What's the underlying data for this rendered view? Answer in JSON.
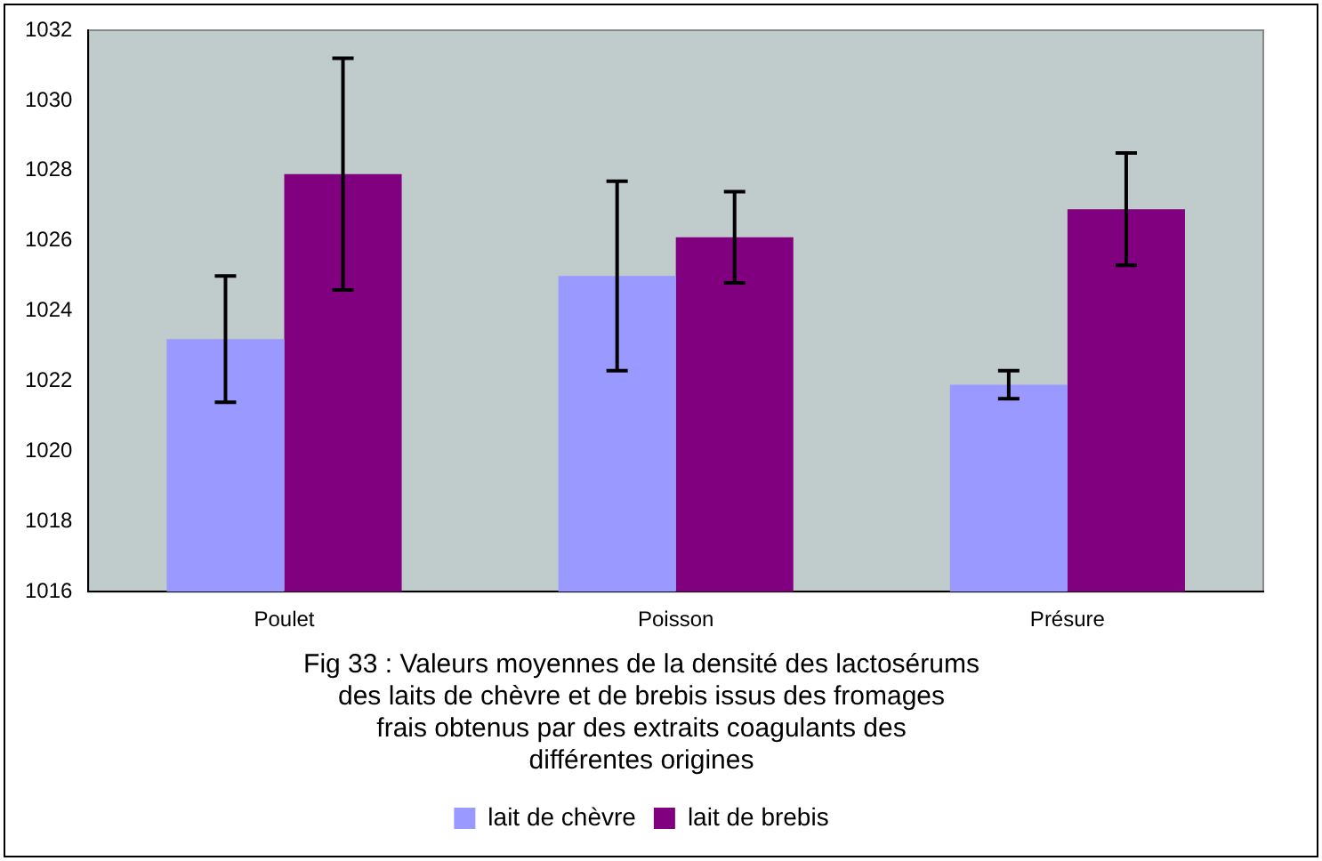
{
  "chart_data": {
    "type": "bar",
    "categories": [
      "Poulet",
      "Poisson",
      "Présure"
    ],
    "series": [
      {
        "name": "lait de chèvre",
        "color": "#9999ff",
        "values": [
          1023.2,
          1025.0,
          1021.9
        ],
        "errors": [
          1.8,
          2.7,
          0.4
        ]
      },
      {
        "name": "lait de brebis",
        "color": "#800080",
        "values": [
          1027.9,
          1026.1,
          1026.9
        ],
        "errors": [
          3.3,
          1.3,
          1.6
        ]
      }
    ],
    "ylim": [
      1016,
      1032
    ],
    "yticks": [
      1016,
      1018,
      1020,
      1022,
      1024,
      1026,
      1028,
      1030,
      1032
    ],
    "grid": false,
    "legend": "bottom",
    "annotations": [
      "Fig 33 : Valeurs moyennes de la densité des lactosérums des laits de chèvre et de brebis issus des fromages frais obtenus par des extraits coagulants des différentes origines"
    ]
  }
}
